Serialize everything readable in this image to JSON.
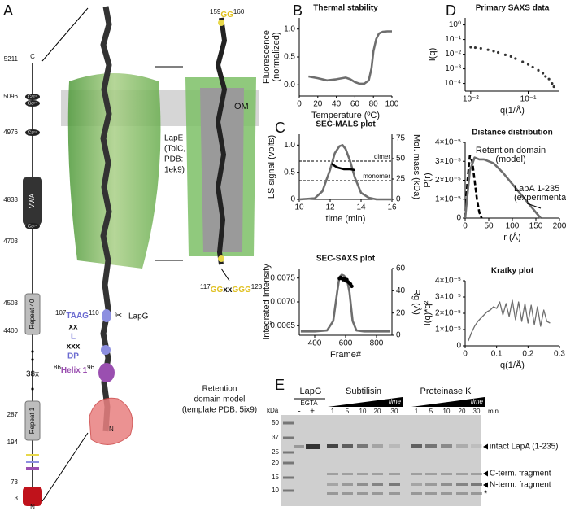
{
  "panel_labels": [
    "A",
    "B",
    "C",
    "D",
    "E"
  ],
  "domain_map": {
    "ends": {
      "c": "C",
      "n": "N"
    },
    "residues": [
      5211,
      5096,
      4976,
      4833,
      4703,
      4503,
      4400,
      287,
      194,
      73,
      3
    ],
    "calcium": "Ca²⁺",
    "vwa": "VWA",
    "repeat_last": "Repeat 40",
    "repeat_first": "Repeat 1",
    "repeat_count": "38x"
  },
  "structure": {
    "om": "OM",
    "lape": [
      "LapE",
      "(TolC,",
      "PDB:",
      "1ek9)"
    ],
    "top_motif": {
      "start": "159",
      "seq": "GG",
      "end": "160"
    },
    "cleavage_site": {
      "start": "107",
      "seq": "TAAG",
      "end": "110"
    },
    "linker": [
      "xx",
      "L",
      "xxx",
      "DP"
    ],
    "helix": {
      "start": "86",
      "name": "Helix 1",
      "end": "96"
    },
    "protease": "LapG",
    "motif2": {
      "start": "117",
      "seq": [
        "GG",
        "xx",
        "GGG"
      ],
      "end": "123"
    },
    "n_term": "N",
    "retention": [
      "Retention",
      "domain model",
      "(template PDB: 5ix9)"
    ]
  },
  "chart_data": [
    {
      "type": "line",
      "title": "Thermal stability",
      "ylabel": [
        "Fluorescence",
        "(normalized)"
      ],
      "xlabel": "Temperature (ºC)",
      "xlim": [
        0,
        100
      ],
      "xticks": [
        0,
        20,
        40,
        60,
        80,
        100
      ],
      "ylim": [
        -0.2,
        1.2
      ],
      "yticks": [
        {
          "value": 0,
          "label": "0.0"
        },
        0.5,
        {
          "value": 1,
          "label": "1.0"
        }
      ],
      "series": [
        {
          "style": "thick",
          "color": "#6e6e6e",
          "x": [
            10,
            20,
            30,
            40,
            50,
            55,
            60,
            65,
            70,
            75,
            78,
            80,
            83,
            86,
            90,
            95,
            100
          ],
          "values": [
            0.15,
            0.12,
            0.08,
            0.1,
            0.13,
            0.1,
            0.05,
            0.02,
            0.02,
            0.08,
            0.3,
            0.6,
            0.82,
            0.92,
            0.95,
            0.96,
            0.96
          ]
        }
      ]
    },
    {
      "type": "line",
      "title": "SEC-MALS plot",
      "ylabel": [
        "LS signal (volts)"
      ],
      "y2label": "Mol. mass (kDa)",
      "xlabel": "time (min)",
      "xlim": [
        10,
        16
      ],
      "xticks": [
        10,
        12,
        14,
        16
      ],
      "ylim": [
        0,
        1.2
      ],
      "yticks": [
        0,
        0.5,
        {
          "value": 1,
          "label": "1.0"
        }
      ],
      "y2lim": [
        0,
        80
      ],
      "y2ticks": [
        0,
        25,
        50,
        75
      ],
      "hlines": [
        {
          "label": "dimer",
          "value": 47
        },
        {
          "label": "monomer",
          "value": 23
        }
      ],
      "series": [
        {
          "style": "thick",
          "color": "#6e6e6e",
          "x": [
            10,
            11,
            11.5,
            12,
            12.3,
            12.6,
            12.8,
            13,
            13.3,
            13.6,
            14,
            14.5,
            15,
            16
          ],
          "values": [
            0,
            0.02,
            0.15,
            0.55,
            0.85,
            0.98,
            1.0,
            0.93,
            0.7,
            0.4,
            0.12,
            0.03,
            0,
            0
          ]
        },
        {
          "style": "thick",
          "color": "#000000",
          "axis": "y2",
          "x": [
            12.1,
            12.3,
            12.5,
            12.7,
            12.9,
            13.1,
            13.3,
            13.6
          ],
          "values": [
            44,
            41,
            39,
            38,
            37,
            37,
            37,
            36
          ]
        }
      ]
    },
    {
      "type": "line",
      "title": "SEC-SAXS plot",
      "ylabel": [
        "Integrated Intensity"
      ],
      "y2label": "Rg (Å)",
      "xlabel": "Frame#",
      "xlim": [
        300,
        900
      ],
      "xticks": [
        400,
        600,
        800
      ],
      "ylim": [
        0.0063,
        0.0077
      ],
      "yticks": [
        0.0065,
        {
          "value": 0.007,
          "label": "0.0070"
        },
        0.0075
      ],
      "y2lim": [
        0,
        60
      ],
      "y2ticks": [
        0,
        20,
        40,
        60
      ],
      "series": [
        {
          "style": "thick",
          "color": "#6e6e6e",
          "x": [
            310,
            400,
            480,
            520,
            545,
            560,
            575,
            590,
            610,
            625,
            645,
            670,
            720,
            800,
            890
          ],
          "values": [
            0.00638,
            0.00638,
            0.0064,
            0.0066,
            0.0072,
            0.00752,
            0.00757,
            0.00755,
            0.00745,
            0.0072,
            0.0066,
            0.0064,
            0.00638,
            0.00638,
            0.00638
          ]
        },
        {
          "style": "points",
          "color": "#000000",
          "axis": "y2",
          "x": [
            560,
            568,
            576,
            584,
            592,
            600,
            608,
            616,
            624,
            632,
            640
          ],
          "values": [
            51,
            52,
            51,
            50,
            51,
            49,
            50,
            48,
            47,
            46,
            44
          ]
        }
      ]
    },
    {
      "type": "line",
      "title": "Primary SAXS data",
      "ylabel": [
        "I(q)"
      ],
      "xlabel": "q(1/Å)",
      "xlog": true,
      "ylog": true,
      "xlim": [
        0.008,
        0.35
      ],
      "xticks": [
        {
          "value": 0.01,
          "label": "10⁻²"
        },
        {
          "value": 0.1,
          "label": "10⁻¹"
        }
      ],
      "ylim": [
        3e-05,
        3
      ],
      "yticks": [
        {
          "value": 0.0001,
          "label": "10⁻⁴"
        },
        {
          "value": 0.001,
          "label": "10⁻³"
        },
        {
          "value": 0.01,
          "label": "10⁻²"
        },
        {
          "value": 0.1,
          "label": "10⁻¹"
        },
        {
          "value": 1,
          "label": "10⁰"
        }
      ],
      "series": [
        {
          "style": "points",
          "color": "#333333",
          "x": [
            0.01,
            0.012,
            0.015,
            0.02,
            0.025,
            0.03,
            0.04,
            0.05,
            0.06,
            0.08,
            0.1,
            0.12,
            0.15,
            0.18,
            0.2,
            0.23,
            0.26,
            0.28
          ],
          "values": [
            0.03,
            0.028,
            0.025,
            0.02,
            0.016,
            0.013,
            0.009,
            0.007,
            0.005,
            0.003,
            0.002,
            0.0013,
            0.0008,
            0.0005,
            0.0003,
            0.0002,
            0.0001,
            6e-05
          ]
        }
      ]
    },
    {
      "type": "line",
      "title": "Distance distribution",
      "ylabel": [
        "P(r)"
      ],
      "xlabel": "r (Å)",
      "xlim": [
        0,
        200
      ],
      "xticks": [
        0,
        50,
        100,
        150,
        200
      ],
      "ylim": [
        0,
        4e-05
      ],
      "yticks": [
        0,
        {
          "value": 1e-05,
          "label": "1×10⁻⁵"
        },
        {
          "value": 2e-05,
          "label": "2×10⁻⁵"
        },
        {
          "value": 3e-05,
          "label": "3×10⁻⁵"
        },
        {
          "value": 4e-05,
          "label": "4×10⁻⁵"
        }
      ],
      "series": [
        {
          "label": [
            "Retention domain",
            "(model)"
          ],
          "style": "dashed",
          "color": "#000000",
          "x": [
            0,
            5,
            10,
            15,
            20,
            25,
            30,
            35
          ],
          "values": [
            0,
            2e-05,
            3.3e-05,
            3e-05,
            2e-05,
            1e-05,
            3e-06,
            0
          ]
        },
        {
          "label": [
            "LapA 1-235",
            "(experimental)"
          ],
          "style": "thick",
          "color": "#6e6e6e",
          "x": [
            0,
            10,
            20,
            30,
            40,
            60,
            80,
            100,
            120,
            140,
            160
          ],
          "values": [
            0,
            2.5e-05,
            3.2e-05,
            3.1e-05,
            3.1e-05,
            2.9e-05,
            2.4e-05,
            1.8e-05,
            1.2e-05,
            6e-06,
            0
          ]
        }
      ]
    },
    {
      "type": "line",
      "title": "Kratky plot",
      "ylabel": [
        "I(q)*q²"
      ],
      "xlabel": "q(1/Å)",
      "xlim": [
        0,
        0.3
      ],
      "xticks": [
        0,
        0.1,
        0.2,
        0.3
      ],
      "ylim": [
        0,
        4e-05
      ],
      "yticks": [
        0,
        {
          "value": 1e-05,
          "label": "1×10⁻⁵"
        },
        {
          "value": 2e-05,
          "label": "2×10⁻⁵"
        },
        {
          "value": 3e-05,
          "label": "3×10⁻⁵"
        },
        {
          "value": 4e-05,
          "label": "4×10⁻⁵"
        }
      ],
      "series": [
        {
          "style": "line",
          "color": "#6e6e6e",
          "x": [
            0.01,
            0.02,
            0.03,
            0.04,
            0.05,
            0.06,
            0.07,
            0.08,
            0.09,
            0.1,
            0.11,
            0.12,
            0.13,
            0.14,
            0.15,
            0.16,
            0.17,
            0.18,
            0.19,
            0.2,
            0.21,
            0.22,
            0.23,
            0.24,
            0.25,
            0.26,
            0.27
          ],
          "values": [
            3e-06,
            8e-06,
            1.2e-05,
            1.5e-05,
            1.7e-05,
            1.9e-05,
            2.1e-05,
            2.2e-05,
            2.4e-05,
            2.3e-05,
            2.7e-05,
            1.9e-05,
            2.6e-05,
            1.8e-05,
            2.8e-05,
            1.6e-05,
            2.7e-05,
            1.5e-05,
            2.6e-05,
            1.4e-05,
            2.5e-05,
            1.3e-05,
            2.4e-05,
            1.2e-05,
            2.2e-05,
            1.5e-05,
            1.4e-05
          ]
        }
      ]
    }
  ],
  "gel": {
    "protease": "LapG",
    "chelator": "EGTA",
    "minus": "-",
    "plus": "+",
    "enzymes": [
      "Subtilisin",
      "Proteinase K"
    ],
    "time": "time",
    "times": [
      1,
      5,
      10,
      20,
      30
    ],
    "unit": "min",
    "mw_unit": "kDa",
    "ladder": [
      50,
      37,
      25,
      20,
      15,
      10
    ],
    "bands": [
      "intact LapA (1-235)",
      "C-term. fragment",
      "N-term. fragment",
      "*"
    ]
  }
}
